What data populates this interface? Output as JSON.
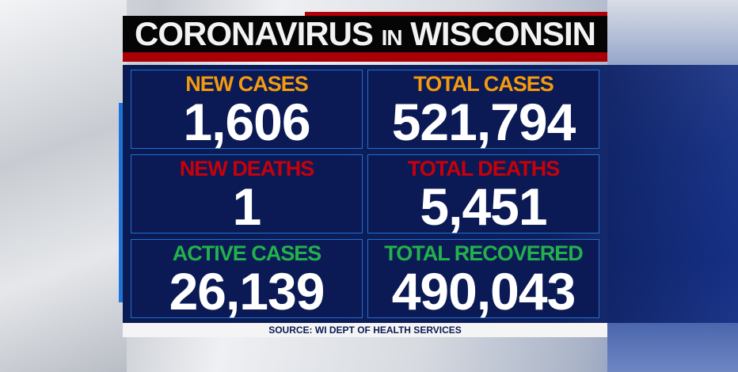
{
  "title": {
    "part1": "CORONAVIRUS",
    "part2": "IN",
    "part3": "WISCONSIN"
  },
  "stats": [
    {
      "label": "NEW CASES",
      "value": "1,606",
      "color": "#f39a0e"
    },
    {
      "label": "TOTAL CASES",
      "value": "521,794",
      "color": "#f39a0e"
    },
    {
      "label": "NEW DEATHS",
      "value": "1",
      "color": "#c8000a"
    },
    {
      "label": "TOTAL DEATHS",
      "value": "5,451",
      "color": "#c8000a"
    },
    {
      "label": "ACTIVE CASES",
      "value": "26,139",
      "color": "#22b14c"
    },
    {
      "label": "TOTAL RECOVERED",
      "value": "490,043",
      "color": "#22b14c"
    }
  ],
  "source": "SOURCE: WI DEPT OF HEALTH SERVICES"
}
